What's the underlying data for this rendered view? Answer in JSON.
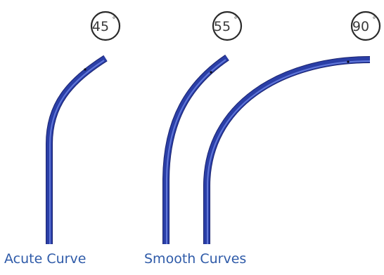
{
  "badges": [
    {
      "value": "45",
      "degree": "°"
    },
    {
      "value": "55",
      "degree": "°"
    },
    {
      "value": "90",
      "degree": "°"
    }
  ],
  "captions": {
    "acute": "Acute Curve",
    "smooth": "Smooth Curves"
  },
  "colors": {
    "tube": "#2a3ea6",
    "tube_highlight": "#6f86e6",
    "tube_shadow": "#1b2470",
    "badge_stroke": "#2a2a2a",
    "caption": "#2e5aa8"
  }
}
